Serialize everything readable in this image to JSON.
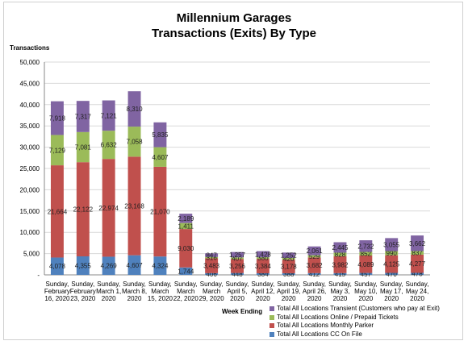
{
  "chart_data": {
    "type": "bar",
    "stacked": true,
    "title": "Millennium Garages",
    "subtitle": "Transactions (Exits) By Type",
    "ylabel": "Transactions",
    "xlabel": "Week  Ending",
    "ylim": [
      0,
      50000
    ],
    "yticks": [
      "-",
      "5,000",
      "10,000",
      "15,000",
      "20,000",
      "25,000",
      "30,000",
      "35,000",
      "40,000",
      "45,000",
      "50,000"
    ],
    "grid": true,
    "legend_position": "bottom-right",
    "categories": [
      [
        "Sunday,",
        "February",
        "16, 2020"
      ],
      [
        "Sunday,",
        "February",
        "23, 2020"
      ],
      [
        "Sunday,",
        "March 1,",
        "2020"
      ],
      [
        "Sunday,",
        "March 8,",
        "2020"
      ],
      [
        "Sunday,",
        "March",
        "15, 2020"
      ],
      [
        "Sunday,",
        "March",
        "22, 2020"
      ],
      [
        "Sunday,",
        "March",
        "29, 2020"
      ],
      [
        "Sunday,",
        "April 5,",
        "2020"
      ],
      [
        "Sunday,",
        "April 12,",
        "2020"
      ],
      [
        "Sunday,",
        "April 19,",
        "2020"
      ],
      [
        "Sunday,",
        "April 26,",
        "2020"
      ],
      [
        "Sunday,",
        "May 3,",
        "2020"
      ],
      [
        "Sunday,",
        "May 10,",
        "2020"
      ],
      [
        "Sunday,",
        "May 17,",
        "2020"
      ],
      [
        "Sunday,",
        "May 24,",
        "2020"
      ]
    ],
    "series": [
      {
        "name": "Total All Locations CC On File",
        "color": "#4f81bd",
        "values": [
          4078,
          4355,
          4269,
          4607,
          4324,
          1744,
          406,
          448,
          384,
          388,
          412,
          415,
          457,
          470,
          478
        ],
        "labels": [
          "4,078",
          "4,355",
          "4,269",
          "4,607",
          "4,324",
          "1,744",
          "406",
          "448",
          "384",
          "388",
          "412",
          "415",
          "457",
          "470",
          "478"
        ]
      },
      {
        "name": "Total All Locations Monthly Parker",
        "color": "#c0504d",
        "values": [
          21664,
          22122,
          22974,
          23168,
          21070,
          9030,
          3483,
          3256,
          3384,
          3178,
          3682,
          3982,
          4089,
          4125,
          4277
        ],
        "labels": [
          "21,664",
          "22,122",
          "22,974",
          "23,168",
          "21,070",
          "9,030",
          "3,483",
          "3,256",
          "3,384",
          "3,178",
          "3,682",
          "3,982",
          "4,089",
          "4,125",
          "4,277"
        ]
      },
      {
        "name": "Total All Locations Online / Prepaid Tickets",
        "color": "#9bbb59",
        "values": [
          7129,
          7081,
          6632,
          7058,
          4607,
          1411,
          316,
          407,
          380,
          420,
          529,
          828,
          852,
          990,
          837
        ],
        "labels": [
          "7,129",
          "7,081",
          "6,632",
          "7,058",
          "4,607",
          "1,411",
          "316",
          "407",
          "380",
          "420",
          "529",
          "828",
          "852",
          "990",
          "837"
        ]
      },
      {
        "name": "Total All Locations Transient (Customers who pay at Exit)",
        "color": "#8064a2",
        "values": [
          7918,
          7317,
          7121,
          8310,
          5835,
          2189,
          847,
          1257,
          1428,
          1252,
          2061,
          2445,
          2732,
          3055,
          3662
        ],
        "labels": [
          "7,918",
          "7,317",
          "7,121",
          "8,310",
          "5,835",
          "2,189",
          "847",
          "1,257",
          "1,428",
          "1,252",
          "2,061",
          "2,445",
          "2,732",
          "3,055",
          "3,662"
        ]
      }
    ]
  }
}
